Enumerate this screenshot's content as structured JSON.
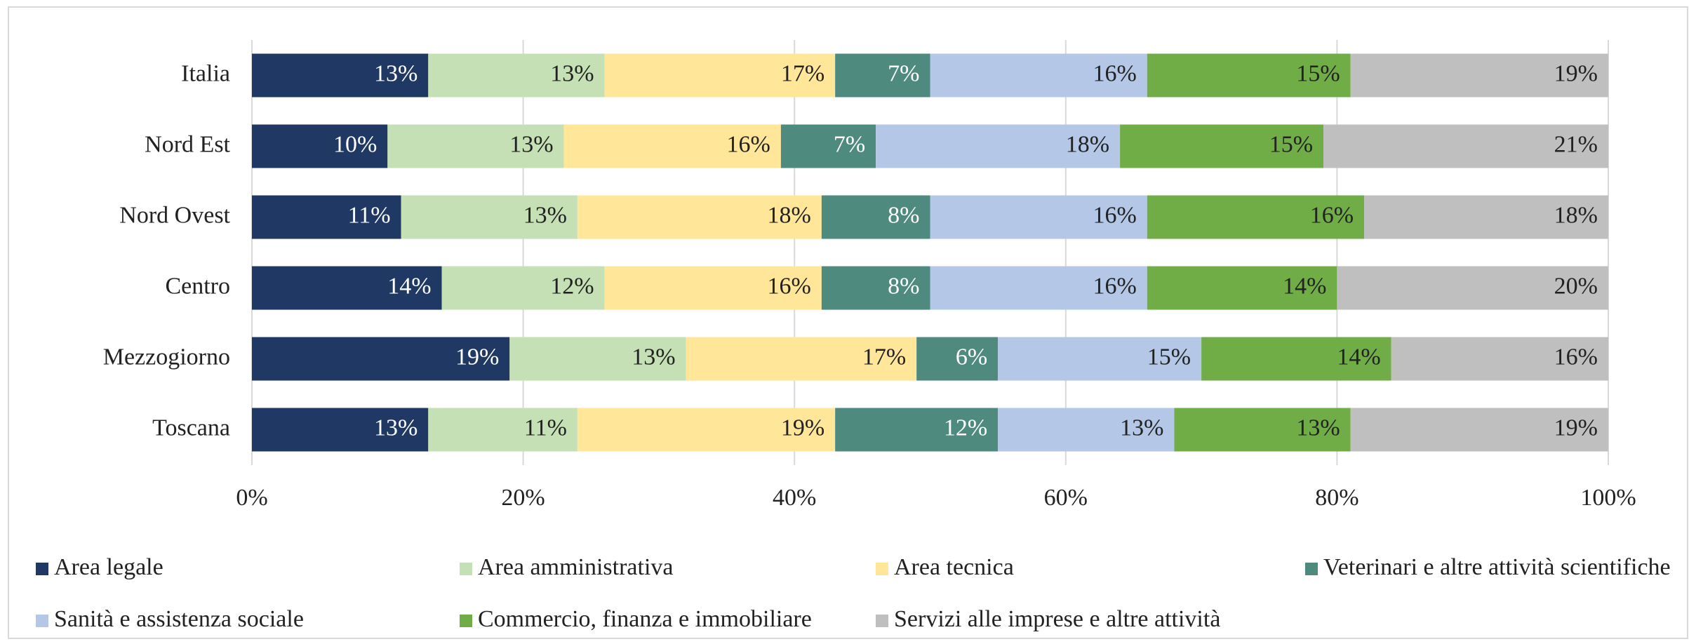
{
  "chart_data": {
    "type": "stacked_barh",
    "categories": [
      "Italia",
      "Nord Est",
      "Nord Ovest",
      "Centro",
      "Mezzogiorno",
      "Toscana"
    ],
    "series": [
      {
        "name": "Area legale",
        "color": "#1f3864",
        "values": [
          13,
          10,
          11,
          14,
          19,
          13
        ],
        "value_labels": [
          "13%",
          "10%",
          "11%",
          "14%",
          "19%",
          "13%"
        ]
      },
      {
        "name": "Area amministrativa",
        "color": "#c5e0b4",
        "values": [
          13,
          13,
          13,
          12,
          13,
          11
        ],
        "value_labels": [
          "13%",
          "13%",
          "13%",
          "12%",
          "13%",
          "11%"
        ]
      },
      {
        "name": "Area tecnica",
        "color": "#ffe699",
        "values": [
          17,
          16,
          18,
          16,
          17,
          19
        ],
        "value_labels": [
          "17%",
          "16%",
          "18%",
          "16%",
          "17%",
          "19%"
        ]
      },
      {
        "name": "Veterinari e altre attività scientifiche",
        "color": "#4e8a7e",
        "values": [
          7,
          7,
          8,
          8,
          6,
          12
        ],
        "value_labels": [
          "7%",
          "7%",
          "8%",
          "8%",
          "6%",
          "12%"
        ]
      },
      {
        "name": "Sanità e assistenza sociale",
        "color": "#b4c7e7",
        "values": [
          16,
          18,
          16,
          16,
          15,
          13
        ],
        "value_labels": [
          "16%",
          "18%",
          "16%",
          "16%",
          "15%",
          "13%"
        ]
      },
      {
        "name": "Commercio, finanza e immobiliare",
        "color": "#70ad47",
        "values": [
          15,
          15,
          16,
          14,
          14,
          13
        ],
        "value_labels": [
          "15%",
          "15%",
          "16%",
          "14%",
          "14%",
          "13%"
        ]
      },
      {
        "name": "Servizi alle imprese e altre attività",
        "color": "#bfbfbf",
        "values": [
          19,
          21,
          18,
          20,
          16,
          19
        ],
        "value_labels": [
          "19%",
          "21%",
          "18%",
          "20%",
          "16%",
          "19%"
        ]
      }
    ],
    "xlim": [
      0,
      100
    ],
    "xticks": [
      {
        "value": 0,
        "label": "0%"
      },
      {
        "value": 20,
        "label": "20%"
      },
      {
        "value": 40,
        "label": "40%"
      },
      {
        "value": 60,
        "label": "60%"
      },
      {
        "value": 80,
        "label": "80%"
      },
      {
        "value": 100,
        "label": "100%"
      }
    ],
    "grid": true
  }
}
